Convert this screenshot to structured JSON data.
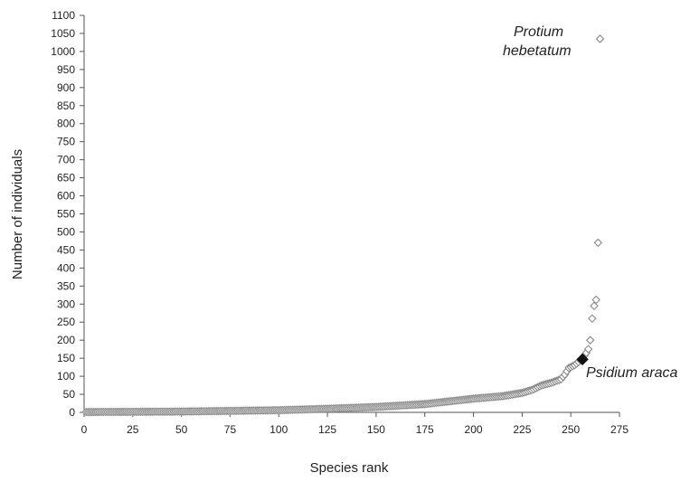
{
  "chart_data": {
    "type": "scatter",
    "title": "",
    "xlabel": "Species rank",
    "ylabel": "Number of individuals",
    "xlim": [
      0,
      275
    ],
    "ylim": [
      0,
      1100
    ],
    "xticks": [
      0,
      25,
      50,
      75,
      100,
      125,
      150,
      175,
      200,
      225,
      250,
      275
    ],
    "yticks": [
      0,
      50,
      100,
      150,
      200,
      250,
      300,
      350,
      400,
      450,
      500,
      550,
      600,
      650,
      700,
      750,
      800,
      850,
      900,
      950,
      1000,
      1050,
      1100
    ],
    "grid": false,
    "legend": "none",
    "marker": "open-diamond",
    "marker_color": "#8a8a8a",
    "highlight_color": "#111111",
    "rank_value_anchors": [
      [
        1,
        1
      ],
      [
        45,
        2
      ],
      [
        75,
        4
      ],
      [
        100,
        6
      ],
      [
        125,
        10
      ],
      [
        150,
        15
      ],
      [
        175,
        23
      ],
      [
        200,
        38
      ],
      [
        215,
        45
      ],
      [
        225,
        54
      ],
      [
        230,
        62
      ],
      [
        235,
        75
      ],
      [
        240,
        82
      ],
      [
        245,
        92
      ],
      [
        247,
        105
      ],
      [
        249,
        123
      ],
      [
        252,
        131
      ],
      [
        255,
        144
      ],
      [
        258,
        165
      ],
      [
        259,
        175
      ],
      [
        260,
        200
      ],
      [
        261,
        260
      ],
      [
        262,
        295
      ],
      [
        263,
        312
      ],
      [
        264,
        470
      ],
      [
        265,
        1035
      ]
    ],
    "annotations": [
      {
        "text": "Protium hebetatum",
        "x": 265,
        "y": 1035,
        "style": "italic"
      },
      {
        "text": "Psidium araca",
        "x": 256,
        "y": 147,
        "style": "italic",
        "highlighted": true
      }
    ]
  },
  "annotations_text": {
    "protium_line1": "Protium",
    "protium_line2": "hebetatum",
    "psidium_genus": "Psidium",
    "psidium_species": "araca"
  }
}
